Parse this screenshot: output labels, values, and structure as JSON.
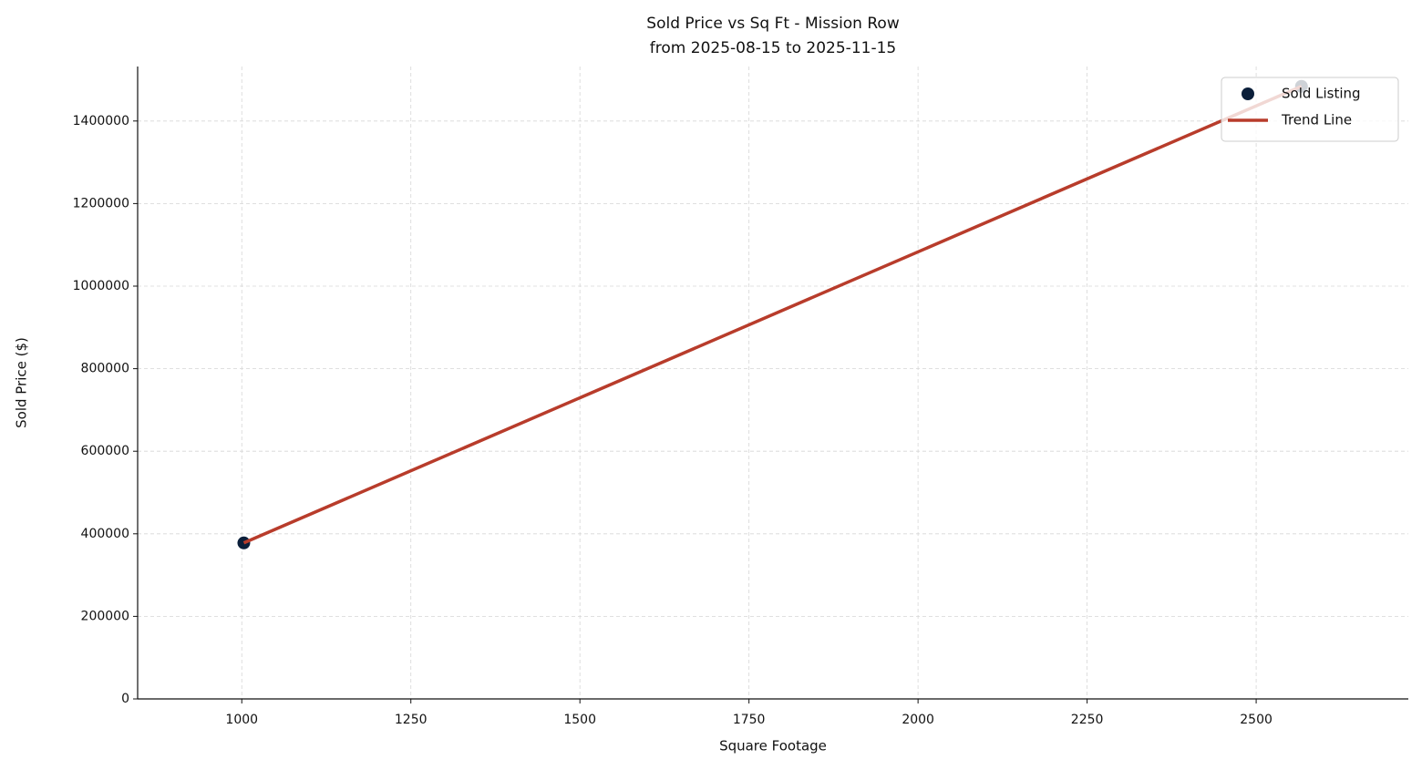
{
  "chart_data": {
    "type": "scatter",
    "title": "Sold Price vs Sq Ft - Mission Row",
    "subtitle": "from 2025-08-15 to 2025-11-15",
    "xlabel": "Square Footage",
    "ylabel": "Sold Price ($)",
    "xlim": [
      846,
      2725
    ],
    "xticks": [
      1000,
      1250,
      1500,
      1750,
      2000,
      2250,
      2500
    ],
    "ylim": [
      0,
      1532000
    ],
    "yticks": [
      0,
      200000,
      400000,
      600000,
      800000,
      1000000,
      1200000,
      1400000
    ],
    "grid": true,
    "legend": "upper right",
    "series": [
      {
        "name": "Sold Listing",
        "type": "scatter",
        "color": "#0b1f3a",
        "x": [
          1003,
          2567
        ],
        "values": [
          378000,
          1484000
        ]
      },
      {
        "name": "Trend Line",
        "type": "line",
        "color": "#b83c2b",
        "x": [
          1003,
          2567
        ],
        "values": [
          378000,
          1484000
        ]
      }
    ]
  }
}
